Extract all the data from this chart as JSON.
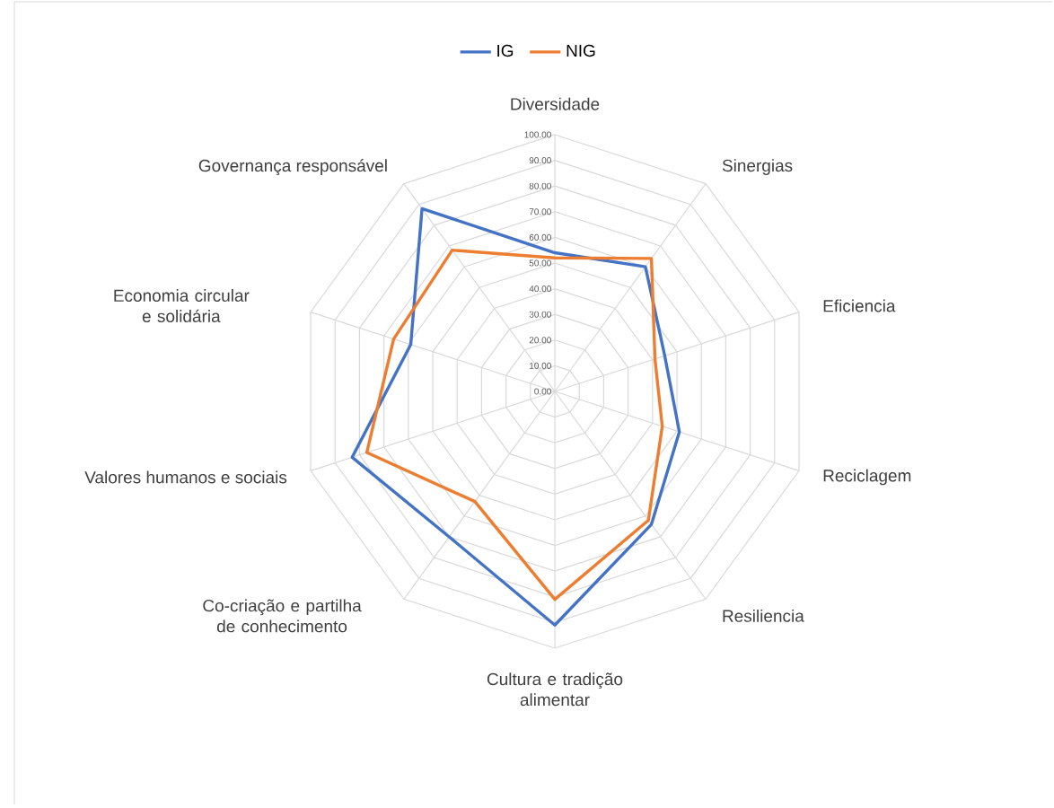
{
  "chart_data": {
    "type": "radar",
    "categories": [
      "Diversidade",
      "Sinergias",
      "Eficiencia",
      "Reciclagem",
      "Resiliencia",
      "Cultura e tradição alimentar",
      "Co-criação e partilha de conhecimento",
      "Valores humanos e sociais",
      "Economia circular e solidária",
      "Governança responsável"
    ],
    "series": [
      {
        "name": "IG",
        "color": "#4472c4",
        "values": [
          54,
          60,
          45,
          51,
          64,
          91,
          70,
          83,
          59,
          88
        ]
      },
      {
        "name": "NIG",
        "color": "#ed7d31",
        "values": [
          52,
          64,
          41,
          44,
          62,
          81,
          53,
          77,
          66,
          68
        ]
      }
    ],
    "ylim": [
      0,
      100
    ],
    "yticks": [
      {
        "value": 0,
        "label": "0.00"
      },
      {
        "value": 10,
        "label": "10.00"
      },
      {
        "value": 20,
        "label": "20.00"
      },
      {
        "value": 30,
        "label": "30.00"
      },
      {
        "value": 40,
        "label": "40.00"
      },
      {
        "value": 50,
        "label": "50.00"
      },
      {
        "value": 60,
        "label": "60.00"
      },
      {
        "value": 70,
        "label": "70.00"
      },
      {
        "value": 80,
        "label": "80.00"
      },
      {
        "value": 90,
        "label": "90.00"
      },
      {
        "value": 100,
        "label": "100.00"
      }
    ],
    "grid": true,
    "legend": "top"
  }
}
